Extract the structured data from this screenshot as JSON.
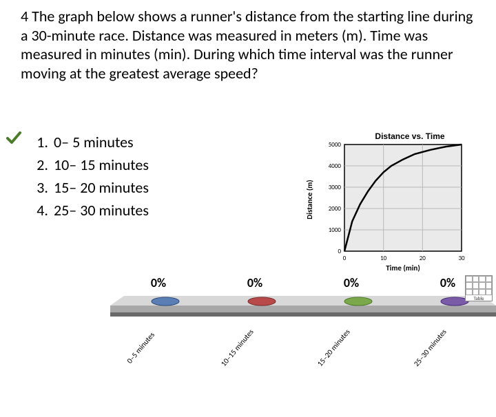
{
  "question": {
    "text": "4 The graph below shows a runner's distance from the starting line during a 30-minute race. Distance was measured in meters (m). Time was measured in minutes (min). During which time interval was the runner moving at the greatest average speed?",
    "fontsize": 22,
    "color": "#000000"
  },
  "choices": [
    {
      "num": "1.",
      "text": "0– 5 minutes",
      "correct": true
    },
    {
      "num": "2.",
      "text": "10– 15 minutes",
      "correct": false
    },
    {
      "num": "3.",
      "text": "15– 20 minutes",
      "correct": false
    },
    {
      "num": "4.",
      "text": "25– 30 minutes",
      "correct": false
    }
  ],
  "checkmark_color": "#4a7c2a",
  "graph": {
    "title": "Distance vs. Time",
    "xlabel": "Time (min)",
    "ylabel": "Distance (m)",
    "xlim": [
      0,
      30
    ],
    "xtick_step": 10,
    "ylim": [
      0,
      5000
    ],
    "ytick_step": 1000,
    "background_color": "#eaeaea",
    "grid_color": "#b8b8b8",
    "axis_color": "#000000",
    "line_color": "#000000",
    "line_width": 2.5,
    "title_fontsize": 12,
    "label_fontsize": 11,
    "tick_fontsize": 9,
    "curve_points": [
      [
        0,
        0
      ],
      [
        2,
        1400
      ],
      [
        4,
        2200
      ],
      [
        6,
        2800
      ],
      [
        8,
        3300
      ],
      [
        10,
        3700
      ],
      [
        12,
        4000
      ],
      [
        15,
        4300
      ],
      [
        18,
        4550
      ],
      [
        22,
        4750
      ],
      [
        26,
        4900
      ],
      [
        30,
        5000
      ]
    ]
  },
  "bar_chart": {
    "percentages": [
      "0%",
      "0%",
      "0%",
      "0%"
    ],
    "chip_colors": [
      "#5b7fb5",
      "#b84a4a",
      "#7aa84a",
      "#7a5ba8"
    ],
    "platform_top": "#d8d8d8",
    "platform_front": "#a8a8a8",
    "platform_shadow": "#6a6a6a",
    "labels": [
      "0–5 minutes",
      "10–15 minutes",
      "15–20 minutes",
      "25–30 minutes"
    ]
  },
  "table_icon_label": "Table"
}
